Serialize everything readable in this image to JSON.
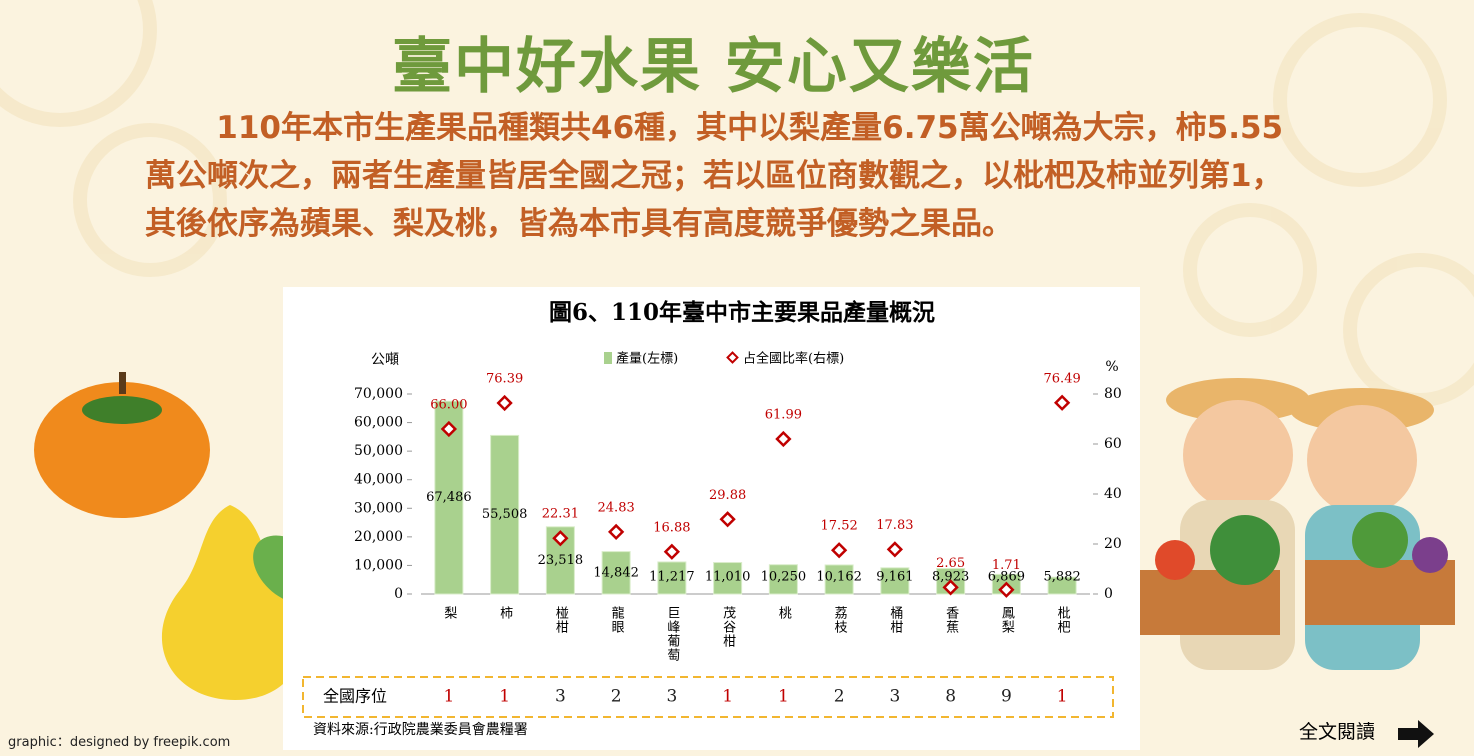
{
  "header": {
    "title": "臺中好水果 安心又樂活",
    "paragraph": "110年本市生產果品種類共46種，其中以梨產量6.75萬公噸為大宗，柿5.55萬公噸次之，兩者生產量皆居全國之冠；若以區位商數觀之，以枇杷及柿並列第1，其後依序為蘋果、梨及桃，皆為本市具有高度競爭優勢之果品。"
  },
  "chart_data": {
    "type": "bar",
    "title": "圖6、110年臺中市主要果品產量概況",
    "y_label": "公噸",
    "y2_label": "%",
    "categories": [
      "梨",
      "柿",
      "椪柑",
      "龍眼",
      "巨峰葡萄",
      "茂谷柑",
      "桃",
      "荔枝",
      "桶柑",
      "香蕉",
      "鳳梨",
      "枇杷"
    ],
    "series": [
      {
        "name": "產量(左標)",
        "color": "#a9d18e",
        "values": [
          67486,
          55508,
          23518,
          14842,
          11217,
          11010,
          10250,
          10162,
          9161,
          8923,
          6869,
          5882
        ],
        "value_labels": [
          "67,486",
          "55,508",
          "23,518",
          "14,842",
          "11,217",
          "11,010",
          "10,250",
          "10,162",
          "9,161",
          "8,923",
          "6,869",
          "5,882"
        ]
      },
      {
        "name": "占全國比率(右標)",
        "color": "#c00000",
        "axis": "y2",
        "type": "scatter",
        "values": [
          66.0,
          76.39,
          22.31,
          24.83,
          16.88,
          29.88,
          61.99,
          17.52,
          17.83,
          2.65,
          1.71,
          76.49
        ],
        "value_labels": [
          "66.00",
          "76.39",
          "22.31",
          "24.83",
          "16.88",
          "29.88",
          "61.99",
          "17.52",
          "17.83",
          "2.65",
          "1.71",
          "76.49"
        ]
      }
    ],
    "ylim": [
      0,
      70000
    ],
    "yticks": [
      0,
      {
        "value": 10000,
        "label": "10,000"
      },
      {
        "value": 20000,
        "label": "20,000"
      },
      {
        "value": 30000,
        "label": "30,000"
      },
      {
        "value": 40000,
        "label": "40,000"
      },
      {
        "value": 50000,
        "label": "50,000"
      },
      {
        "value": 60000,
        "label": "60,000"
      },
      {
        "value": 70000,
        "label": "70,000"
      }
    ],
    "y2lim": [
      0,
      80
    ],
    "y2ticks": [
      0,
      20,
      40,
      60,
      80
    ],
    "grid": false,
    "rank": {
      "label": "全國序位",
      "values": [
        1,
        1,
        3,
        2,
        3,
        1,
        1,
        2,
        3,
        8,
        9,
        1
      ]
    },
    "source": "資料來源:行政院農業委員會農糧署"
  },
  "footer": {
    "credit": "graphic：designed by freepik.com",
    "read_more": "全文閱讀"
  }
}
